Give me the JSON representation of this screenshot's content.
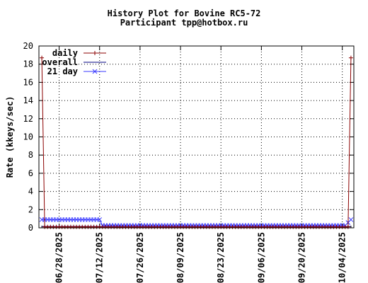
{
  "chart_data": {
    "type": "line",
    "title": "History Plot for Bovine RC5-72",
    "subtitle": "Participant tpp@hotbox.ru",
    "ylabel": "Rate (kkeys/sec)",
    "xlabel": "",
    "x_start": "06/21/2025",
    "x_end": "10/08/2025",
    "ylim": [
      0,
      20
    ],
    "yticks": [
      "0",
      "2",
      "4",
      "6",
      "8",
      "10",
      "12",
      "14",
      "16",
      "18",
      "20"
    ],
    "xticks": [
      "06/28/2025",
      "07/12/2025",
      "07/26/2025",
      "08/09/2025",
      "08/23/2025",
      "09/06/2025",
      "09/20/2025",
      "10/04/2025"
    ],
    "grid": true,
    "legend_position": "top-left",
    "series": [
      {
        "name": "daily",
        "color": "#8b0000",
        "marker": "plus",
        "points": [
          [
            "06/22/2025",
            18.7
          ],
          [
            "06/23/2025",
            0.1
          ],
          [
            "06/24/2025",
            0.1
          ],
          [
            "10/05/2025",
            0.1
          ],
          [
            "10/06/2025",
            0.1
          ],
          [
            "10/07/2025",
            18.7
          ]
        ],
        "baseline_value": 0.1
      },
      {
        "name": "overall",
        "color": "#000080",
        "marker": "none",
        "points": [
          [
            "06/22/2025",
            0.15
          ],
          [
            "10/07/2025",
            0.15
          ]
        ]
      },
      {
        "name": "21 day",
        "color": "#3a3aff",
        "marker": "x",
        "points": [
          [
            "06/22/2025",
            0.9
          ],
          [
            "07/12/2025",
            0.9
          ],
          [
            "07/13/2025",
            0.25
          ],
          [
            "10/05/2025",
            0.25
          ],
          [
            "10/07/2025",
            0.9
          ]
        ]
      }
    ]
  }
}
